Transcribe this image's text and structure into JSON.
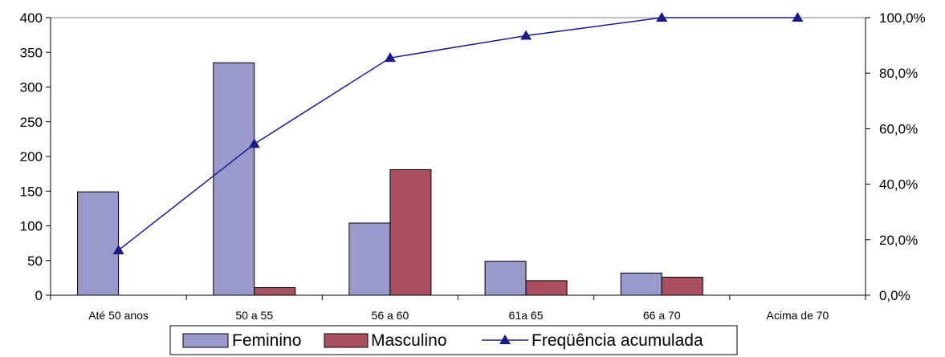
{
  "chart_data": {
    "type": "bar",
    "categories": [
      "Até 50 anos",
      "50 a 55",
      "56 a 60",
      "61a 65",
      "66 a 70",
      "Acima de 70"
    ],
    "series": [
      {
        "name": "Feminino",
        "type": "bar",
        "axis": "left",
        "color": "#9999cc",
        "values": [
          149,
          335,
          104,
          49,
          32,
          0
        ]
      },
      {
        "name": "Masculino",
        "type": "bar",
        "axis": "left",
        "color": "#a94f5f",
        "values": [
          0,
          11,
          181,
          21,
          26,
          0
        ]
      },
      {
        "name": "Freqüência acumulada",
        "type": "line",
        "axis": "right",
        "color": "#1a1a8c",
        "marker": "triangle",
        "values": [
          16.2,
          54.5,
          85.5,
          93.5,
          100.0,
          100.0
        ]
      }
    ],
    "y_left": {
      "ylim": [
        0,
        400
      ],
      "ticks": [
        "0",
        "50",
        "100",
        "150",
        "200",
        "250",
        "300",
        "350",
        "400"
      ]
    },
    "y_right": {
      "ylim": [
        0,
        100
      ],
      "ticks": [
        "0,0%",
        "20,0%",
        "40,0%",
        "60,0%",
        "80,0%",
        "100,0%"
      ]
    },
    "grid": false,
    "legend": "bottom-center"
  }
}
